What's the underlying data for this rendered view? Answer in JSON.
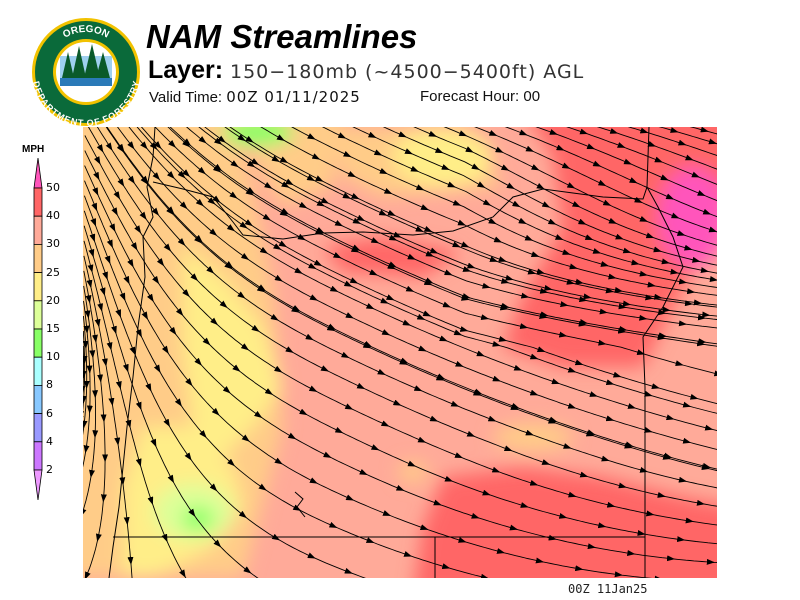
{
  "header": {
    "title": "NAM Streamlines",
    "layer_label": "Layer:",
    "layer_value": "150−180mb (~4500−5400ft) AGL",
    "valid_label": "Valid Time:",
    "valid_value": "00Z 01/11/2025",
    "forecast_label": "Forecast Hour:",
    "forecast_value": "00"
  },
  "logo": {
    "text_top": "OREGON",
    "text_bottom": "DEPARTMENT OF FORESTRY"
  },
  "legend": {
    "unit": "MPH",
    "ticks": [
      "50",
      "40",
      "30",
      "25",
      "20",
      "15",
      "10",
      "8",
      "6",
      "4",
      "2"
    ],
    "colors": {
      "above_50": "#ff55bb",
      "40_50": "#ff6666",
      "30_40": "#ffaa99",
      "25_30": "#ffcc88",
      "20_25": "#ffee88",
      "15_20": "#ddff99",
      "10_15": "#88ff66",
      "8_10": "#aaffff",
      "6_8": "#88c8ff",
      "4_6": "#9999ff",
      "2_4": "#cc77ff",
      "below_2": "#ee99ff"
    }
  },
  "footer": {
    "timestamp": "00Z  11Jan25"
  }
}
